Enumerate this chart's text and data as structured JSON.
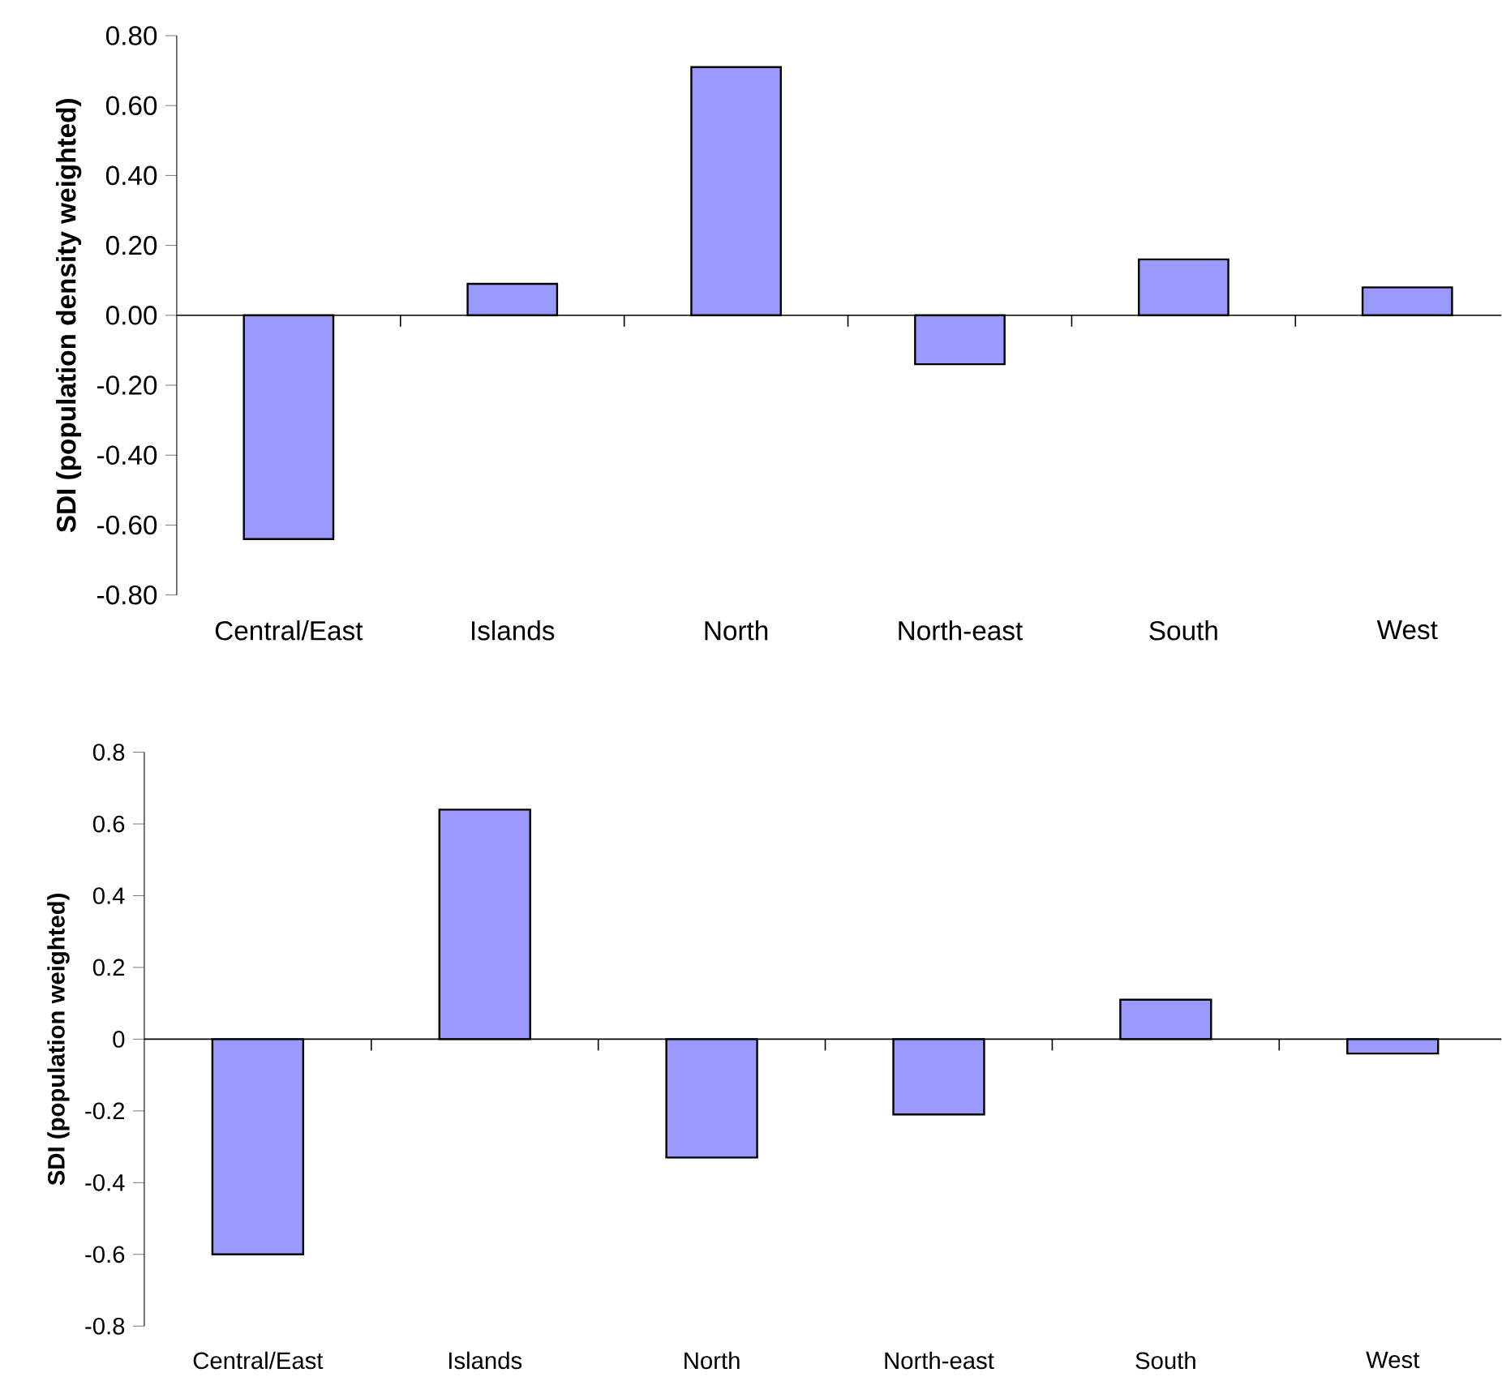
{
  "chart_data": [
    {
      "type": "bar",
      "ylabel": "SDI (population density weighted)",
      "categories": [
        "Central/East",
        "Islands",
        "North",
        "North-east",
        "South",
        "West"
      ],
      "values": [
        -0.64,
        0.09,
        0.71,
        -0.14,
        0.16,
        0.08
      ],
      "color": "#9999ff",
      "ylim": [
        -0.8,
        0.8
      ],
      "yticks": [
        {
          "value": -0.8,
          "label": "-0.80"
        },
        {
          "value": -0.6,
          "label": "-0.60"
        },
        {
          "value": -0.4,
          "label": "-0.40"
        },
        {
          "value": -0.2,
          "label": "-0.20"
        },
        {
          "value": 0,
          "label": "0.00"
        },
        {
          "value": 0.2,
          "label": "0.20"
        },
        {
          "value": 0.4,
          "label": "0.40"
        },
        {
          "value": 0.6,
          "label": "0.60"
        },
        {
          "value": 0.8,
          "label": "0.80"
        }
      ]
    },
    {
      "type": "bar",
      "ylabel": "SDI (population weighted)",
      "categories": [
        "Central/East",
        "Islands",
        "North",
        "North-east",
        "South",
        "West"
      ],
      "values": [
        -0.6,
        0.64,
        -0.33,
        -0.21,
        0.11,
        -0.04
      ],
      "color": "#9999ff",
      "ylim": [
        -0.8,
        0.8
      ],
      "yticks": [
        -0.8,
        -0.6,
        -0.4,
        -0.2,
        0,
        0.2,
        0.4,
        0.6,
        0.8
      ]
    }
  ]
}
